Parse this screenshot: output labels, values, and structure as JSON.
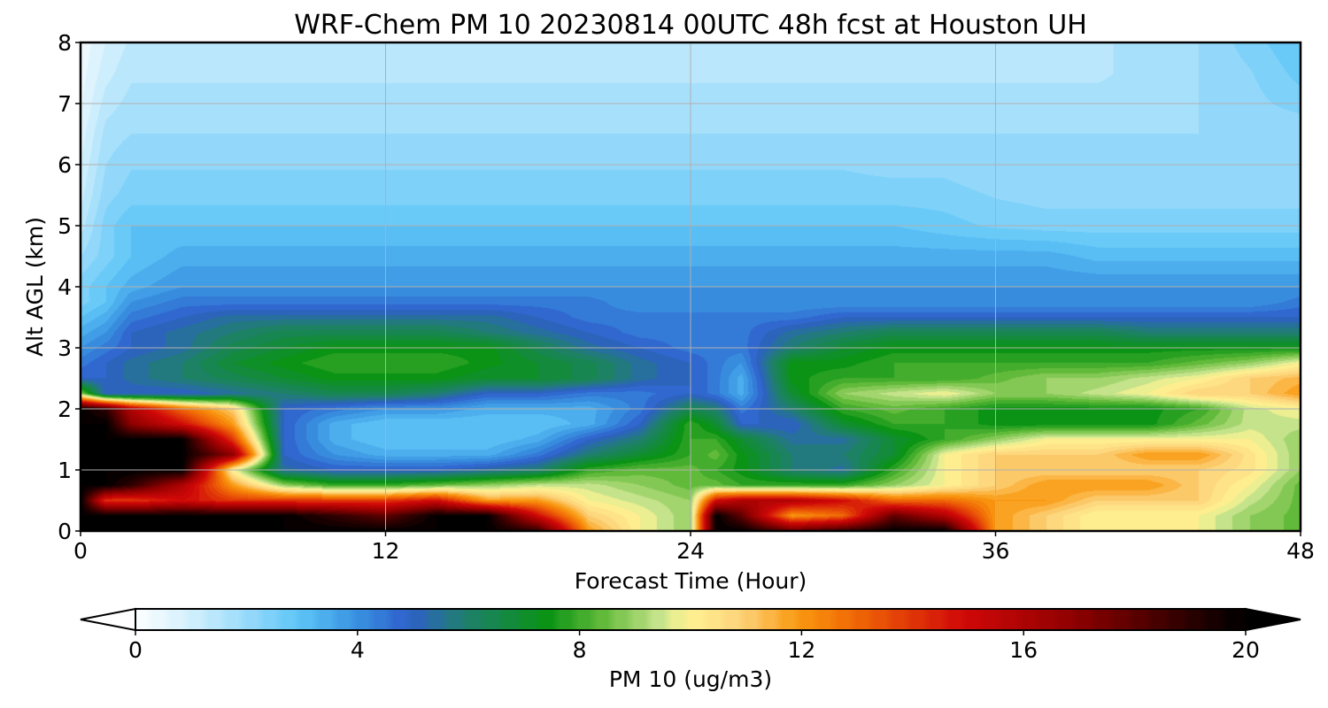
{
  "chart_data": {
    "type": "heatmap",
    "title": "WRF-Chem PM 10  20230814 00UTC 48h fcst at Houston UH",
    "xlabel": "Forecast Time (Hour)",
    "ylabel": "Alt AGL (km)",
    "xlim": [
      0,
      48
    ],
    "ylim": [
      0,
      8
    ],
    "xticks": [
      "0",
      "12",
      "24",
      "36",
      "48"
    ],
    "yticks": [
      "0",
      "1",
      "2",
      "3",
      "4",
      "5",
      "6",
      "7",
      "8"
    ],
    "grid": true,
    "colorbar": {
      "label": "PM 10  (ug/m3)",
      "range": [
        0,
        20
      ],
      "ticks": [
        "0",
        "4",
        "8",
        "12",
        "16",
        "20"
      ],
      "extend": "both",
      "stops": [
        {
          "v": 0,
          "c": "#ffffff"
        },
        {
          "v": 1,
          "c": "#d6f1fd"
        },
        {
          "v": 2,
          "c": "#9edcfb"
        },
        {
          "v": 3,
          "c": "#5ec6f7"
        },
        {
          "v": 4,
          "c": "#3a95e2"
        },
        {
          "v": 5,
          "c": "#2e5fcc"
        },
        {
          "v": 6,
          "c": "#1f7f6e"
        },
        {
          "v": 7.5,
          "c": "#0a9314"
        },
        {
          "v": 8.5,
          "c": "#62ba3a"
        },
        {
          "v": 9.5,
          "c": "#c4e38a"
        },
        {
          "v": 10,
          "c": "#fff394"
        },
        {
          "v": 11,
          "c": "#fcd27b"
        },
        {
          "v": 12,
          "c": "#f99a10"
        },
        {
          "v": 13,
          "c": "#f16a06"
        },
        {
          "v": 15,
          "c": "#d00808"
        },
        {
          "v": 17,
          "c": "#8e0000"
        },
        {
          "v": 18.5,
          "c": "#470000"
        },
        {
          "v": 20,
          "c": "#000000"
        }
      ]
    },
    "x": [
      0,
      1,
      2,
      4,
      6,
      8,
      10,
      12,
      14,
      16,
      18,
      20,
      22,
      24,
      25,
      26,
      28,
      30,
      32,
      34,
      36,
      38,
      40,
      42,
      44,
      46,
      48
    ],
    "y": [
      0,
      0.25,
      0.5,
      0.75,
      1,
      1.25,
      1.5,
      1.75,
      2,
      2.25,
      2.5,
      2.75,
      3,
      3.25,
      3.5,
      3.75,
      4,
      4.5,
      5,
      5.5,
      6,
      6.5,
      7,
      7.5,
      8
    ],
    "z": [
      [
        20,
        20,
        20,
        20,
        20,
        20,
        20,
        20,
        20,
        20,
        19,
        12,
        10,
        9,
        20,
        20,
        18,
        19,
        20,
        20,
        12,
        11,
        10,
        10,
        10,
        9,
        8.5
      ],
      [
        20,
        20,
        20,
        20,
        20,
        20,
        19,
        18,
        20,
        20,
        15,
        11,
        10,
        9,
        20,
        18,
        12,
        13,
        18,
        16,
        12,
        11,
        10,
        10,
        10,
        9,
        8.5
      ],
      [
        20,
        14,
        14,
        15,
        14,
        14,
        14,
        14,
        15,
        12,
        12,
        10,
        9.5,
        9,
        15,
        16,
        16,
        15,
        13,
        13,
        12,
        12,
        11,
        11,
        11,
        9.5,
        8.5
      ],
      [
        20,
        20,
        19,
        16,
        12,
        9,
        8,
        8,
        8.5,
        9,
        9.5,
        9.5,
        9,
        8.5,
        8.5,
        8,
        8,
        8,
        9,
        10,
        11,
        12,
        12,
        12,
        11,
        10,
        8.5
      ],
      [
        20,
        20,
        20,
        20,
        10,
        5.5,
        5,
        5,
        5,
        5.5,
        6,
        8,
        8.5,
        8.5,
        8,
        7.5,
        6,
        5.5,
        8,
        10,
        11,
        11,
        11,
        11,
        11,
        10.5,
        9
      ],
      [
        20,
        20,
        20,
        20,
        17,
        5,
        4,
        3.5,
        3.5,
        3.5,
        4.5,
        6,
        7,
        8,
        8.5,
        7.5,
        6,
        6,
        7,
        10,
        11,
        11,
        11,
        12,
        12,
        10.5,
        9
      ],
      [
        20,
        20,
        20,
        20,
        14,
        5,
        3.5,
        3,
        3,
        3,
        3.5,
        5,
        6,
        8,
        8,
        7,
        5.5,
        5.5,
        7,
        8,
        9,
        10,
        10,
        10,
        10,
        10,
        9
      ],
      [
        20,
        20,
        17,
        15,
        12,
        5,
        3.5,
        3,
        3,
        3,
        3,
        3.5,
        5,
        8,
        7,
        5,
        5,
        7,
        8,
        8,
        7.5,
        7.5,
        7.5,
        7.5,
        8.5,
        9.5,
        9.5
      ],
      [
        20,
        19,
        16,
        13,
        11,
        5,
        4.5,
        4,
        4,
        3.5,
        3.5,
        3.5,
        4.5,
        6.5,
        6,
        4.5,
        6,
        8,
        8.5,
        8,
        7.5,
        7.5,
        7.5,
        7.5,
        8,
        9.5,
        10
      ],
      [
        9,
        5,
        5,
        5,
        5.5,
        6,
        6.5,
        6.5,
        6,
        5,
        5,
        4.5,
        4.5,
        5,
        4.5,
        3.5,
        7,
        9,
        9.5,
        10,
        9,
        9,
        9.5,
        10,
        11,
        11,
        12
      ],
      [
        5,
        5,
        5.5,
        6,
        6.5,
        7,
        7.5,
        7.5,
        7.5,
        7,
        7,
        6.5,
        5.5,
        5,
        4.5,
        3.5,
        7.5,
        8,
        8,
        8,
        8.5,
        9,
        9,
        9.5,
        10,
        11,
        11.5
      ],
      [
        4.5,
        5,
        5.5,
        6,
        7,
        7.5,
        8,
        8,
        8,
        7.5,
        7,
        6.5,
        5.5,
        5,
        4.5,
        4,
        7.5,
        7.5,
        8,
        8,
        8,
        8,
        8,
        8,
        8.5,
        9,
        10
      ],
      [
        4,
        4.5,
        5,
        5.5,
        6.5,
        7,
        7.5,
        7.5,
        7.5,
        7.5,
        6.5,
        5.5,
        5,
        4.5,
        4.5,
        4.5,
        6,
        7,
        7.5,
        7.5,
        7.5,
        7.5,
        7.5,
        7.5,
        7.5,
        7.5,
        7.5
      ],
      [
        3.5,
        4,
        5,
        5.5,
        6,
        6.5,
        6.5,
        6.5,
        6.5,
        6,
        5.5,
        5,
        4.5,
        4.5,
        4.5,
        4.5,
        5.5,
        6,
        6.5,
        6.5,
        6.5,
        6.5,
        6.5,
        6,
        6,
        6,
        6
      ],
      [
        3,
        3.5,
        4.5,
        5,
        5.5,
        5.5,
        5.5,
        5.5,
        5.5,
        5.5,
        5,
        4.5,
        4.5,
        4.5,
        4.5,
        4.5,
        4.5,
        5,
        5,
        5,
        5,
        5,
        5,
        5,
        5,
        5,
        5
      ],
      [
        2.5,
        3,
        4,
        4.5,
        4.5,
        4.5,
        4.5,
        4.5,
        4.5,
        4.5,
        4.5,
        4.5,
        4,
        4,
        4,
        4,
        4,
        4,
        4,
        4,
        4,
        4,
        4,
        4,
        4,
        4,
        4.5
      ],
      [
        2.5,
        3,
        3.5,
        4,
        4,
        4,
        4,
        4,
        4,
        4,
        4,
        4,
        4,
        4,
        4,
        4,
        4,
        4,
        4,
        4,
        4,
        4,
        4,
        4,
        4,
        4,
        4
      ],
      [
        2,
        2.5,
        3,
        3.5,
        3.5,
        3.5,
        3.5,
        3.5,
        3.5,
        3.5,
        3.5,
        3.5,
        3.5,
        3.5,
        3.5,
        3.5,
        3.5,
        3.5,
        3.5,
        3.5,
        3.5,
        3.5,
        3.2,
        3.2,
        3.2,
        3.2,
        3.2
      ],
      [
        1.5,
        2.5,
        3,
        3,
        3,
        3,
        3,
        3,
        3,
        3,
        3,
        3,
        3,
        3,
        3,
        3,
        3,
        3,
        3,
        2.8,
        2.6,
        2.5,
        2.5,
        2.5,
        2.5,
        2.5,
        2.5
      ],
      [
        1.2,
        2.2,
        2.5,
        2.5,
        2.5,
        2.5,
        2.5,
        2.5,
        2.5,
        2.5,
        2.5,
        2.5,
        2.5,
        2.5,
        2.5,
        2.5,
        2.5,
        2.5,
        2.5,
        2.5,
        2.3,
        2.2,
        2.2,
        2.2,
        2.2,
        2.2,
        2.2
      ],
      [
        1,
        2,
        2.3,
        2.3,
        2.3,
        2.3,
        2.3,
        2.3,
        2.3,
        2.3,
        2.3,
        2.3,
        2.3,
        2.3,
        2.3,
        2.3,
        2.3,
        2.3,
        2.2,
        2.2,
        2,
        2,
        2,
        2,
        2,
        2,
        2
      ],
      [
        0.8,
        1.8,
        2,
        2,
        2,
        2,
        2,
        2,
        2,
        2,
        2,
        2,
        2,
        2,
        2,
        2,
        2,
        2,
        2,
        2,
        2,
        2,
        2,
        2,
        2,
        2,
        2
      ],
      [
        0.6,
        1.5,
        1.8,
        1.8,
        1.8,
        1.8,
        1.8,
        1.8,
        1.8,
        1.8,
        1.8,
        1.8,
        1.8,
        1.8,
        1.8,
        1.8,
        1.8,
        1.8,
        1.8,
        1.8,
        1.8,
        1.8,
        1.8,
        1.8,
        2,
        2.2,
        2.5
      ],
      [
        0.5,
        1.2,
        1.6,
        1.6,
        1.6,
        1.6,
        1.6,
        1.6,
        1.6,
        1.6,
        1.6,
        1.6,
        1.6,
        1.6,
        1.6,
        1.6,
        1.6,
        1.6,
        1.6,
        1.6,
        1.6,
        1.6,
        1.6,
        1.8,
        2,
        2.3,
        2.8
      ],
      [
        0.4,
        1,
        1.4,
        1.5,
        1.5,
        1.5,
        1.5,
        1.5,
        1.5,
        1.5,
        1.5,
        1.5,
        1.5,
        1.5,
        1.5,
        1.5,
        1.5,
        1.5,
        1.5,
        1.5,
        1.5,
        1.5,
        1.6,
        1.8,
        2,
        2.5,
        3
      ]
    ]
  }
}
